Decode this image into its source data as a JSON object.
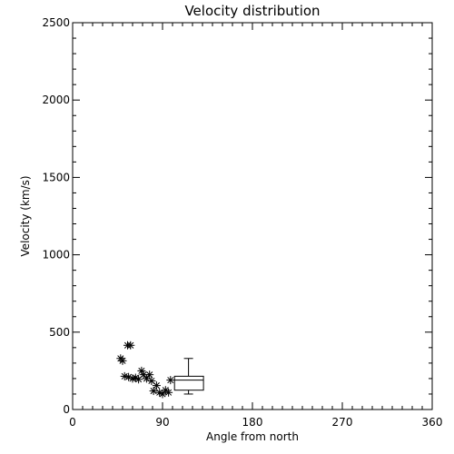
{
  "chart_data": {
    "type": "scatter",
    "title": "Velocity distribution",
    "xlabel": "Angle from north",
    "ylabel": "Velocity (km/s)",
    "xlim": [
      0,
      360
    ],
    "ylim": [
      0,
      2500
    ],
    "xticks": [
      "0",
      "90",
      "180",
      "270",
      "360"
    ],
    "yticks": [
      "0",
      "500",
      "1000",
      "1500",
      "2000",
      "2500"
    ],
    "grid": false,
    "marker": "asterisk",
    "points": [
      {
        "x": 48,
        "y": 330
      },
      {
        "x": 50,
        "y": 315
      },
      {
        "x": 55,
        "y": 415
      },
      {
        "x": 58,
        "y": 415
      },
      {
        "x": 52,
        "y": 215
      },
      {
        "x": 56,
        "y": 210
      },
      {
        "x": 60,
        "y": 200
      },
      {
        "x": 63,
        "y": 205
      },
      {
        "x": 66,
        "y": 195
      },
      {
        "x": 69,
        "y": 250
      },
      {
        "x": 71,
        "y": 225
      },
      {
        "x": 74,
        "y": 200
      },
      {
        "x": 77,
        "y": 225
      },
      {
        "x": 79,
        "y": 185
      },
      {
        "x": 81,
        "y": 120
      },
      {
        "x": 84,
        "y": 155
      },
      {
        "x": 87,
        "y": 110
      },
      {
        "x": 90,
        "y": 100
      },
      {
        "x": 93,
        "y": 125
      },
      {
        "x": 96,
        "y": 110
      },
      {
        "x": 98,
        "y": 190
      }
    ],
    "boxplot": {
      "x_left": 102,
      "x_right": 131,
      "whisker_x": 116,
      "min": 100,
      "q1": 125,
      "median": 190,
      "q3": 215,
      "max": 330
    }
  }
}
